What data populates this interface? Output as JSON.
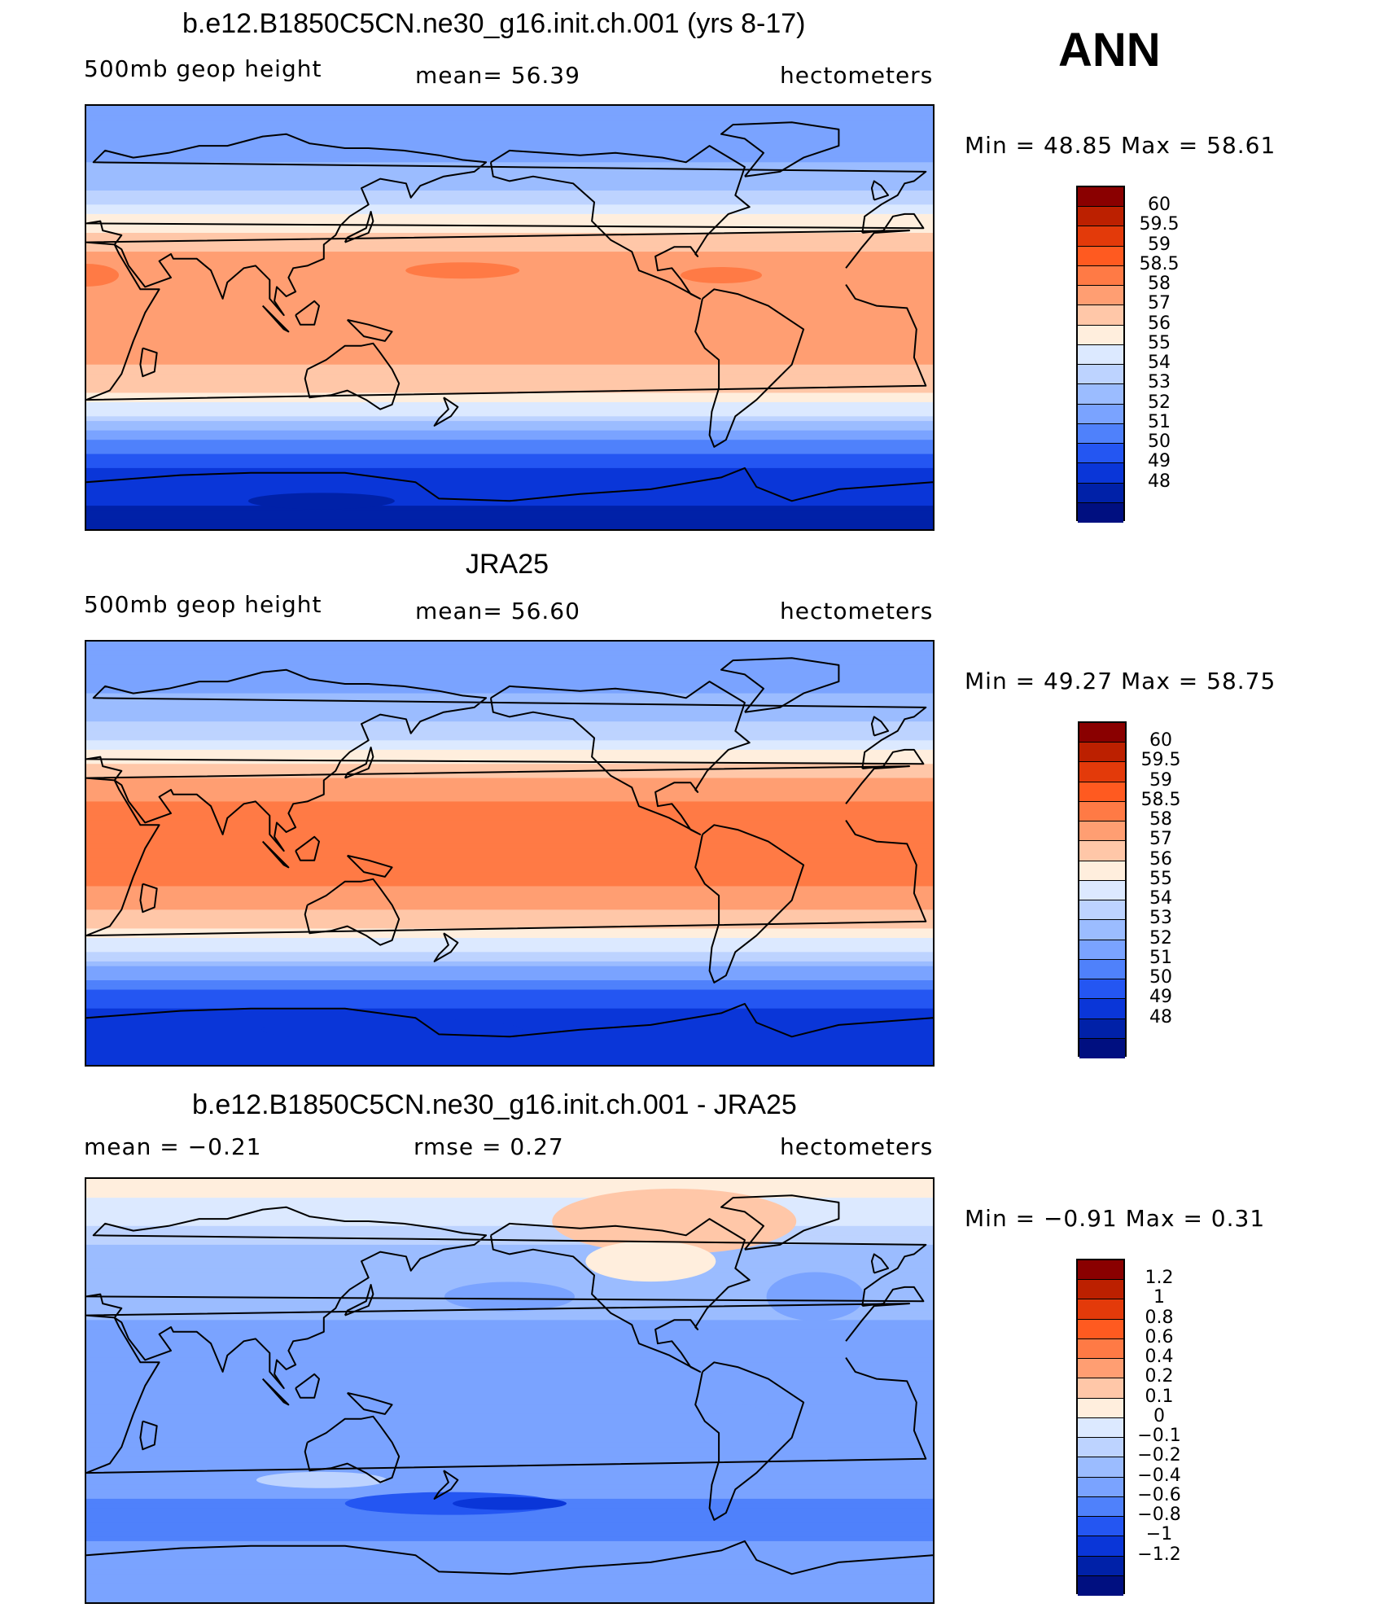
{
  "season": "ANN",
  "units": "hectometers",
  "variable": "500mb geop height",
  "panels": [
    {
      "title": "b.e12.B1850C5CN.ne30_g16.init.ch.001 (yrs 8-17)",
      "left_label": "500mb geop height",
      "center_label": "mean=   56.39",
      "right_label": "hectometers",
      "minmax_label": "Min =   48.85  Max =   58.61"
    },
    {
      "title": "JRA25",
      "left_label": "500mb geop height",
      "center_label": "mean=   56.60",
      "right_label": "hectometers",
      "minmax_label": "Min =   49.27  Max =   58.75"
    },
    {
      "title": "b.e12.B1850C5CN.ne30_g16.init.ch.001 - JRA25",
      "left_label": "mean =   −0.21",
      "center_label": "rmse =    0.27",
      "right_label": "hectometers",
      "minmax_label": "Min =   −0.91  Max =    0.31"
    }
  ],
  "colorbars": {
    "absolute": {
      "labels": [
        "60",
        "59.5",
        "59",
        "58.5",
        "58",
        "57",
        "56",
        "55",
        "54",
        "53",
        "52",
        "51",
        "50",
        "49",
        "48"
      ],
      "colors": [
        "#8a0000",
        "#bc2000",
        "#e33a0a",
        "#ff5a20",
        "#ff7a45",
        "#ff9e72",
        "#ffc7a8",
        "#ffeedd",
        "#dce9ff",
        "#bdd3ff",
        "#9bbcff",
        "#7aa3ff",
        "#4f81fb",
        "#2456f2",
        "#0a36d8",
        "#0021a8",
        "#000f80"
      ]
    },
    "difference": {
      "labels": [
        "1.2",
        "1",
        "0.8",
        "0.6",
        "0.4",
        "0.2",
        "0.1",
        "0",
        "−0.1",
        "−0.2",
        "−0.4",
        "−0.6",
        "−0.8",
        "−1",
        "−1.2"
      ],
      "colors": [
        "#8a0000",
        "#bc2000",
        "#e33a0a",
        "#ff5a20",
        "#ff7a45",
        "#ff9e72",
        "#ffc7a8",
        "#ffeedd",
        "#dce9ff",
        "#bdd3ff",
        "#9bbcff",
        "#7aa3ff",
        "#4f81fb",
        "#2456f2",
        "#0a36d8",
        "#0021a8",
        "#000f80"
      ]
    }
  },
  "chart_data": [
    {
      "type": "heatmap",
      "title": "b.e12.B1850C5CN.ne30_g16.init.ch.001 (yrs 8-17)",
      "field": "500mb geop height",
      "units": "hectometers",
      "mean": 56.39,
      "min": 48.85,
      "max": 58.61,
      "contour_levels": [
        48,
        49,
        50,
        51,
        52,
        53,
        54,
        55,
        56,
        57,
        58,
        58.5,
        59,
        59.5,
        60
      ],
      "zonal_profile": {
        "lat": [
          90,
          75,
          60,
          50,
          40,
          30,
          20,
          10,
          0,
          -10,
          -20,
          -30,
          -40,
          -50,
          -60,
          -70,
          -80,
          -90
        ],
        "value": [
          52.0,
          52.5,
          53.3,
          54.6,
          56.6,
          57.9,
          58.3,
          58.2,
          58.2,
          58.2,
          58.0,
          57.2,
          55.3,
          52.5,
          50.4,
          49.4,
          49.0,
          48.9
        ]
      }
    },
    {
      "type": "heatmap",
      "title": "JRA25",
      "field": "500mb geop height",
      "units": "hectometers",
      "mean": 56.6,
      "min": 49.27,
      "max": 58.75,
      "contour_levels": [
        48,
        49,
        50,
        51,
        52,
        53,
        54,
        55,
        56,
        57,
        58,
        58.5,
        59,
        59.5,
        60
      ],
      "zonal_profile": {
        "lat": [
          90,
          75,
          60,
          50,
          40,
          30,
          20,
          10,
          0,
          -10,
          -20,
          -30,
          -40,
          -50,
          -60,
          -70,
          -80,
          -90
        ],
        "value": [
          52.2,
          52.6,
          53.4,
          54.7,
          56.8,
          58.2,
          58.6,
          58.6,
          58.6,
          58.6,
          58.3,
          57.3,
          55.4,
          52.7,
          50.6,
          49.7,
          49.4,
          49.3
        ]
      }
    },
    {
      "type": "heatmap",
      "title": "b.e12.B1850C5CN.ne30_g16.init.ch.001 - JRA25",
      "field": "500mb geop height difference",
      "units": "hectometers",
      "mean": -0.21,
      "rmse": 0.27,
      "min": -0.91,
      "max": 0.31,
      "contour_levels": [
        -1.2,
        -1,
        -0.8,
        -0.6,
        -0.4,
        -0.2,
        -0.1,
        0,
        0.1,
        0.2,
        0.4,
        0.6,
        0.8,
        1,
        1.2
      ],
      "zonal_profile": {
        "lat": [
          90,
          75,
          60,
          50,
          40,
          30,
          20,
          10,
          0,
          -10,
          -20,
          -30,
          -40,
          -50,
          -60,
          -70,
          -80,
          -90
        ],
        "value": [
          0.15,
          0.05,
          -0.12,
          -0.15,
          -0.18,
          -0.2,
          -0.25,
          -0.28,
          -0.3,
          -0.3,
          -0.25,
          -0.22,
          -0.3,
          -0.5,
          -0.45,
          -0.3,
          -0.25,
          -0.22
        ]
      }
    }
  ]
}
